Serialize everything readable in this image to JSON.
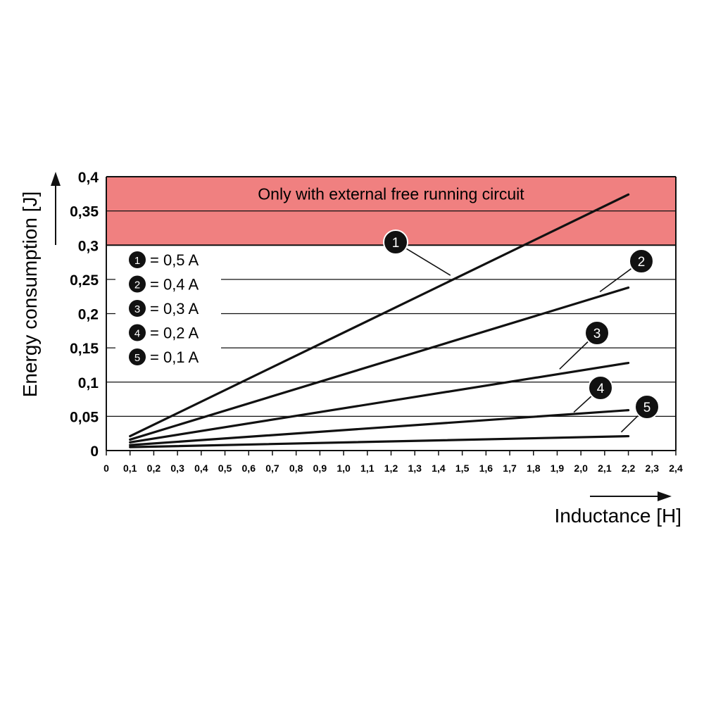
{
  "chart_data": {
    "type": "line",
    "xlabel": "Inductance [H]",
    "ylabel": "Energy consumption [J]",
    "xlim": [
      0,
      2.4
    ],
    "ylim": [
      0,
      0.4
    ],
    "x_ticks": [
      "0",
      "0,1",
      "0,2",
      "0,3",
      "0,4",
      "0,5",
      "0,6",
      "0,7",
      "0,8",
      "0,9",
      "1,0",
      "1,1",
      "1,2",
      "1,3",
      "1,4",
      "1,5",
      "1,6",
      "1,7",
      "1,8",
      "1,9",
      "2,0",
      "2,1",
      "2,2",
      "2,3",
      "2,4"
    ],
    "y_ticks": [
      "0",
      "0,05",
      "0,1",
      "0,15",
      "0,2",
      "0,25",
      "0,3",
      "0,35",
      "0,4"
    ],
    "grid": "horizontal",
    "band": {
      "y_from": 0.3,
      "y_to": 0.4,
      "color": "#f08080",
      "label": "Only with external free running circuit"
    },
    "legend_position": "top-left",
    "series": [
      {
        "name": "= 0,5 A",
        "marker": "1",
        "x": [
          0.1,
          2.2
        ],
        "y": [
          0.021,
          0.374
        ]
      },
      {
        "name": "= 0,4 A",
        "marker": "2",
        "x": [
          0.1,
          2.2
        ],
        "y": [
          0.016,
          0.238
        ]
      },
      {
        "name": "= 0,3 A",
        "marker": "3",
        "x": [
          0.1,
          2.2
        ],
        "y": [
          0.012,
          0.128
        ]
      },
      {
        "name": "= 0,2 A",
        "marker": "4",
        "x": [
          0.1,
          2.2
        ],
        "y": [
          0.008,
          0.059
        ]
      },
      {
        "name": "= 0,1 A",
        "marker": "5",
        "x": [
          0.1,
          2.2
        ],
        "y": [
          0.005,
          0.021
        ]
      }
    ],
    "callouts": [
      {
        "marker": "1",
        "at_x": 1.45,
        "at_y": 0.256
      },
      {
        "marker": "2",
        "at_x": 2.08,
        "at_y": 0.232
      },
      {
        "marker": "3",
        "at_x": 1.91,
        "at_y": 0.119
      },
      {
        "marker": "4",
        "at_x": 1.97,
        "at_y": 0.056
      },
      {
        "marker": "5",
        "at_x": 2.17,
        "at_y": 0.027
      }
    ]
  },
  "colors": {
    "line": "#111111",
    "band": "#f08080",
    "grid": "#111111"
  }
}
